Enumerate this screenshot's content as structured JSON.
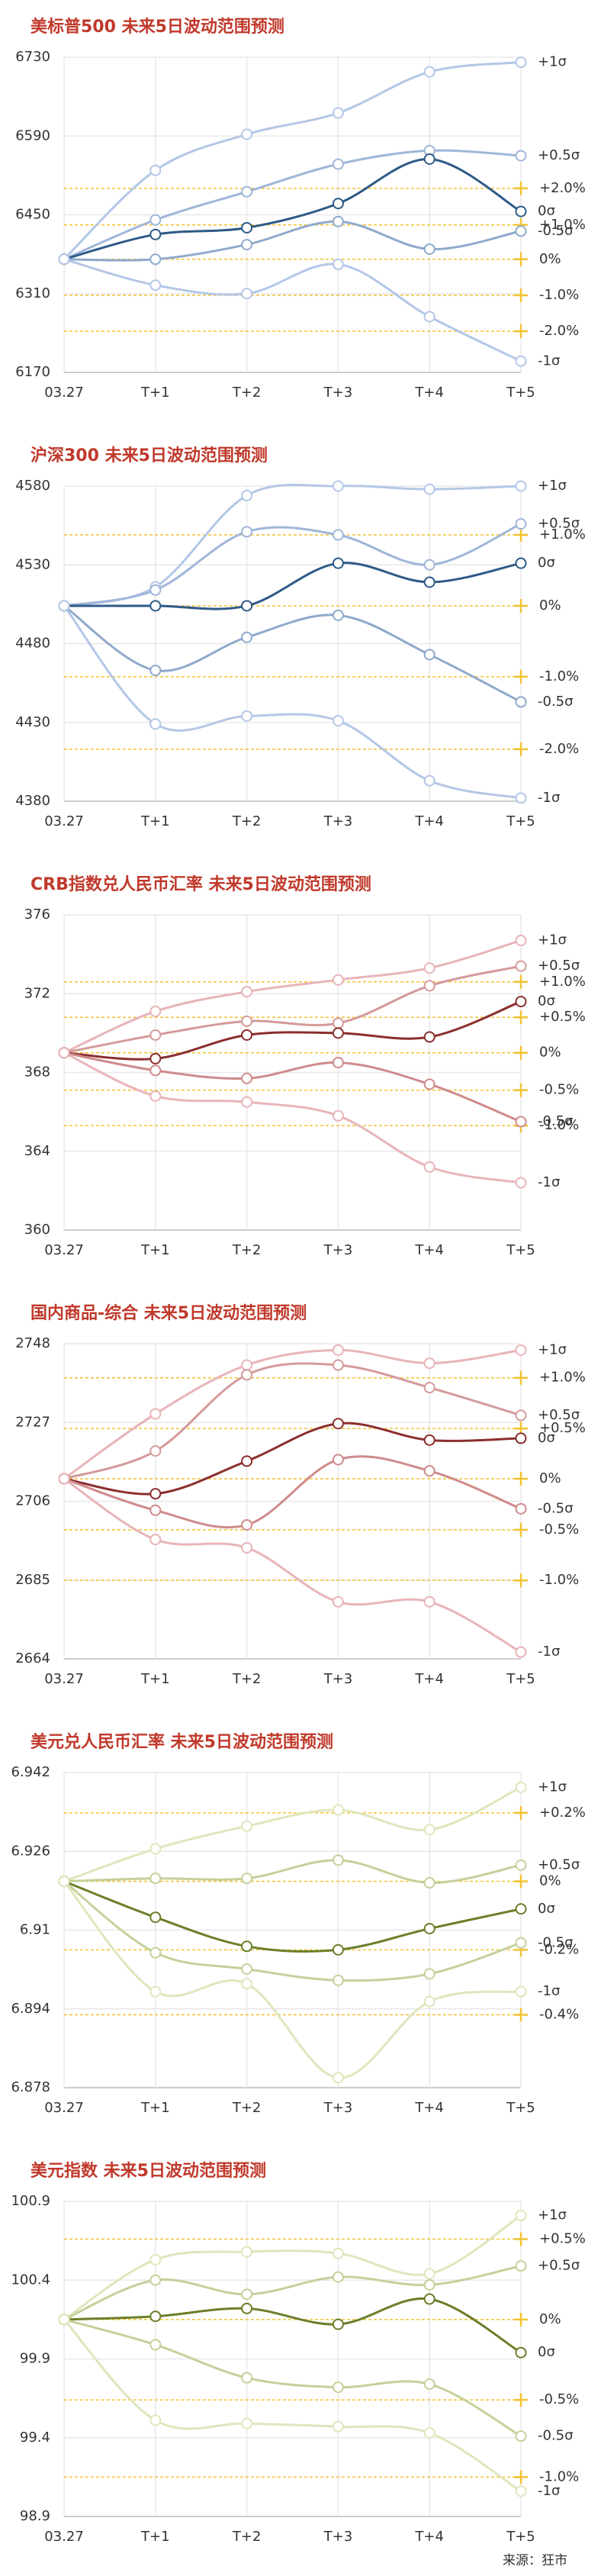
{
  "chart_data": [
    {
      "type": "line",
      "title": "美标普500 未来5日波动范围预测",
      "categories": [
        "03.27",
        "T+1",
        "T+2",
        "T+3",
        "T+4",
        "T+5"
      ],
      "ylim": [
        6170,
        6730
      ],
      "yticks": [
        6170,
        6310,
        6450,
        6590,
        6730
      ],
      "grid": true,
      "label_color": "#3a5f8a",
      "ref_color": "#f2c230",
      "ref_label_color": "#c07a00",
      "series": [
        {
          "name": "+1σ",
          "color": "#b4c7e7",
          "values": [
            6371,
            6529,
            6593,
            6631,
            6704,
            6721
          ]
        },
        {
          "name": "+0.5σ",
          "color": "#9fb6d8",
          "values": [
            6371,
            6441,
            6491,
            6540,
            6564,
            6555
          ]
        },
        {
          "name": "0σ",
          "color": "#2e5a87",
          "values": [
            6371,
            6415,
            6427,
            6470,
            6549,
            6456
          ]
        },
        {
          "name": "-0.5σ",
          "color": "#8fa9cc",
          "values": [
            6371,
            6371,
            6397,
            6438,
            6389,
            6421
          ]
        },
        {
          "name": "-1σ",
          "color": "#b4c7e7",
          "values": [
            6371,
            6325,
            6310,
            6362,
            6269,
            6190
          ]
        }
      ],
      "ref_lines": [
        {
          "name": "+2.0%",
          "value": 6497
        },
        {
          "name": "+1.0%",
          "value": 6432
        },
        {
          "name": "0%",
          "value": 6371
        },
        {
          "name": "-1.0%",
          "value": 6307
        },
        {
          "name": "-2.0%",
          "value": 6243
        }
      ]
    },
    {
      "type": "line",
      "title": "沪深300 未来5日波动范围预测",
      "categories": [
        "03.27",
        "T+1",
        "T+2",
        "T+3",
        "T+4",
        "T+5"
      ],
      "ylim": [
        4380,
        4580
      ],
      "yticks": [
        4380,
        4430,
        4480,
        4530,
        4580
      ],
      "grid": true,
      "label_color": "#3a5f8a",
      "ref_color": "#f2c230",
      "ref_label_color": "#c07a00",
      "series": [
        {
          "name": "+1σ",
          "color": "#b4c7e7",
          "values": [
            4504,
            4516,
            4574,
            4580,
            4578,
            4580
          ]
        },
        {
          "name": "+0.5σ",
          "color": "#9fb6d8",
          "values": [
            4504,
            4514,
            4551,
            4549,
            4530,
            4556
          ]
        },
        {
          "name": "0σ",
          "color": "#2e5a87",
          "values": [
            4504,
            4504,
            4504,
            4531,
            4519,
            4531
          ]
        },
        {
          "name": "-0.5σ",
          "color": "#8fa9cc",
          "values": [
            4504,
            4463,
            4484,
            4498,
            4473,
            4443
          ]
        },
        {
          "name": "-1σ",
          "color": "#b4c7e7",
          "values": [
            4504,
            4429,
            4434,
            4431,
            4393,
            4382
          ]
        }
      ],
      "ref_lines": [
        {
          "name": "+1.0%",
          "value": 4549
        },
        {
          "name": "0%",
          "value": 4504
        },
        {
          "name": "-1.0%",
          "value": 4459
        },
        {
          "name": "-2.0%",
          "value": 4413
        }
      ]
    },
    {
      "type": "line",
      "title": "CRB指数兑人民币汇率 未来5日波动范围预测",
      "categories": [
        "03.27",
        "T+1",
        "T+2",
        "T+3",
        "T+4",
        "T+5"
      ],
      "ylim": [
        360,
        376
      ],
      "yticks": [
        360,
        364,
        368,
        372,
        376
      ],
      "grid": true,
      "label_color": "#8b2e2e",
      "ref_color": "#f2c230",
      "ref_label_color": "#c07a00",
      "series": [
        {
          "name": "+1σ",
          "color": "#e8b4b8",
          "values": [
            369.0,
            371.1,
            372.1,
            372.7,
            373.3,
            374.7
          ]
        },
        {
          "name": "+0.5σ",
          "color": "#d49a9a",
          "values": [
            369.0,
            369.9,
            370.6,
            370.5,
            372.4,
            373.4
          ]
        },
        {
          "name": "0σ",
          "color": "#8b2e2e",
          "values": [
            369.0,
            368.7,
            369.9,
            370.0,
            369.8,
            371.6
          ]
        },
        {
          "name": "-0.5σ",
          "color": "#cf8a8a",
          "values": [
            369.0,
            368.1,
            367.7,
            368.5,
            367.4,
            365.5
          ]
        },
        {
          "name": "-1σ",
          "color": "#e8b4b8",
          "values": [
            369.0,
            366.8,
            366.5,
            365.8,
            363.2,
            362.4
          ]
        }
      ],
      "ref_lines": [
        {
          "name": "+1.0%",
          "value": 372.6
        },
        {
          "name": "+0.5%",
          "value": 370.8
        },
        {
          "name": "0%",
          "value": 369.0
        },
        {
          "name": "-0.5%",
          "value": 367.1
        },
        {
          "name": "-1.0%",
          "value": 365.3
        }
      ]
    },
    {
      "type": "line",
      "title": "国内商品-综合 未来5日波动范围预测",
      "categories": [
        "03.27",
        "T+1",
        "T+2",
        "T+3",
        "T+4",
        "T+5"
      ],
      "ylim": [
        2664,
        2748
      ],
      "yticks": [
        2664,
        2685,
        2706,
        2727,
        2748
      ],
      "grid": true,
      "label_color": "#8b2e2e",
      "ref_color": "#f2c230",
      "ref_label_color": "#c07a00",
      "series": [
        {
          "name": "+1σ",
          "color": "#e8b4b8",
          "values": [
            2712,
            2729.3,
            2742.3,
            2746.3,
            2742.8,
            2746.3
          ]
        },
        {
          "name": "+0.5σ",
          "color": "#d49a9a",
          "values": [
            2712,
            2719.4,
            2739.7,
            2742.3,
            2736.3,
            2728.9
          ]
        },
        {
          "name": "0σ",
          "color": "#8b2e2e",
          "values": [
            2712,
            2708,
            2716.7,
            2726.7,
            2722.3,
            2722.8
          ]
        },
        {
          "name": "-0.5σ",
          "color": "#cf8a8a",
          "values": [
            2712,
            2703.6,
            2699.7,
            2717.1,
            2714.1,
            2704
          ]
        },
        {
          "name": "-1σ",
          "color": "#e8b4b8",
          "values": [
            2712,
            2695.8,
            2693.6,
            2679.2,
            2679.2,
            2665.8
          ]
        }
      ],
      "ref_lines": [
        {
          "name": "+1.0%",
          "value": 2738.9
        },
        {
          "name": "+0.5%",
          "value": 2725.4
        },
        {
          "name": "0%",
          "value": 2712
        },
        {
          "name": "-0.5%",
          "value": 2698.4
        },
        {
          "name": "-1.0%",
          "value": 2684.9
        }
      ]
    },
    {
      "type": "line",
      "title": "美元兑人民币汇率 未来5日波动范围预测",
      "categories": [
        "03.27",
        "T+1",
        "T+2",
        "T+3",
        "T+4",
        "T+5"
      ],
      "ylim": [
        6.878,
        6.942
      ],
      "yticks": [
        6.878,
        6.894,
        6.91,
        6.926,
        6.942
      ],
      "grid": true,
      "label_color": "#6b7f2a",
      "ref_color": "#f2c230",
      "ref_label_color": "#c07a00",
      "series": [
        {
          "name": "+1σ",
          "color": "#dfe6bc",
          "values": [
            6.9199,
            6.9265,
            6.9311,
            6.9344,
            6.9304,
            6.939
          ]
        },
        {
          "name": "+0.5σ",
          "color": "#c3d19a",
          "values": [
            6.9199,
            6.9205,
            6.9205,
            6.9242,
            6.9196,
            6.9232
          ]
        },
        {
          "name": "0σ",
          "color": "#6b7f2a",
          "values": [
            6.9199,
            6.9126,
            6.9067,
            6.906,
            6.9103,
            6.9143
          ]
        },
        {
          "name": "-0.5σ",
          "color": "#c3d19a",
          "values": [
            6.9199,
            6.9054,
            6.9021,
            6.8998,
            6.9011,
            6.9074
          ]
        },
        {
          "name": "-1σ",
          "color": "#dfe6bc",
          "values": [
            6.9199,
            6.8975,
            6.8991,
            6.88,
            6.8955,
            6.8975
          ]
        }
      ],
      "ref_lines": [
        {
          "name": "+0.2%",
          "value": 6.9338
        },
        {
          "name": "0%",
          "value": 6.9199
        },
        {
          "name": "-0.2%",
          "value": 6.906
        },
        {
          "name": "-0.4%",
          "value": 6.8928
        }
      ]
    },
    {
      "type": "line",
      "title": "美元指数 未来5日波动范围预测",
      "categories": [
        "03.27",
        "T+1",
        "T+2",
        "T+3",
        "T+4",
        "T+5"
      ],
      "ylim": [
        98.9,
        100.9
      ],
      "yticks": [
        98.9,
        99.4,
        99.9,
        100.4,
        100.9
      ],
      "grid": true,
      "label_color": "#6b7f2a",
      "ref_color": "#f2c230",
      "ref_label_color": "#c07a00",
      "series": [
        {
          "name": "+1σ",
          "color": "#dfe6bc",
          "values": [
            100.15,
            100.53,
            100.58,
            100.57,
            100.44,
            100.81
          ]
        },
        {
          "name": "+0.5σ",
          "color": "#c3d19a",
          "values": [
            100.15,
            100.4,
            100.31,
            100.42,
            100.37,
            100.49
          ]
        },
        {
          "name": "0σ",
          "color": "#6b7f2a",
          "values": [
            100.15,
            100.17,
            100.22,
            100.12,
            100.28,
            99.94
          ]
        },
        {
          "name": "-0.5σ",
          "color": "#c3d19a",
          "values": [
            100.15,
            99.99,
            99.78,
            99.72,
            99.74,
            99.41
          ]
        },
        {
          "name": "-1σ",
          "color": "#dfe6bc",
          "values": [
            100.15,
            99.51,
            99.49,
            99.47,
            99.43,
            99.06
          ]
        }
      ],
      "ref_lines": [
        {
          "name": "+0.5%",
          "value": 100.66
        },
        {
          "name": "0%",
          "value": 100.15
        },
        {
          "name": "-0.5%",
          "value": 99.64
        },
        {
          "name": "-1.0%",
          "value": 99.15
        }
      ]
    }
  ],
  "source": "来源：狂市"
}
